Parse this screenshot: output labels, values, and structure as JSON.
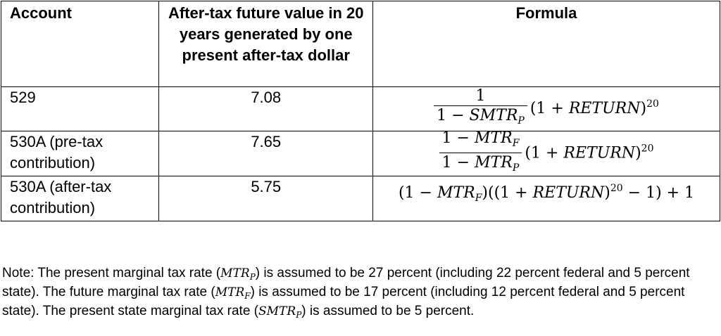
{
  "table": {
    "headers": {
      "account": "Account",
      "value": "After-tax future value in 20 years generated by one present after-tax dollar",
      "formula": "Formula"
    },
    "rows": [
      {
        "account": "529",
        "value": "7.08"
      },
      {
        "account": "530A (pre-tax contribution)",
        "value": "7.65"
      },
      {
        "account": "530A (after-tax contribution)",
        "value": "5.75"
      }
    ]
  },
  "formulas": {
    "one": "1",
    "one_minus": "1 − ",
    "smtr": "SMTR",
    "mtr": "MTR",
    "sub_p": "P",
    "sub_f": "F",
    "return": "RETURN",
    "exp": "20",
    "growth_open": "(1 + ",
    "paren_close": ")",
    "f3_open": "(1 − ",
    "f3_mid": ")((1 + ",
    "f3_tail": " − 1) + 1"
  },
  "note": {
    "p1": "Note: The present marginal tax rate (",
    "p2": ") is assumed to be 27 percent (including 22 percent federal and 5 percent state). The future marginal tax rate (",
    "p3": ") is assumed to be 17 percent (including 12 percent federal and 5 percent state). The present state marginal tax rate (",
    "p4": ") is assumed to be 5 percent."
  }
}
